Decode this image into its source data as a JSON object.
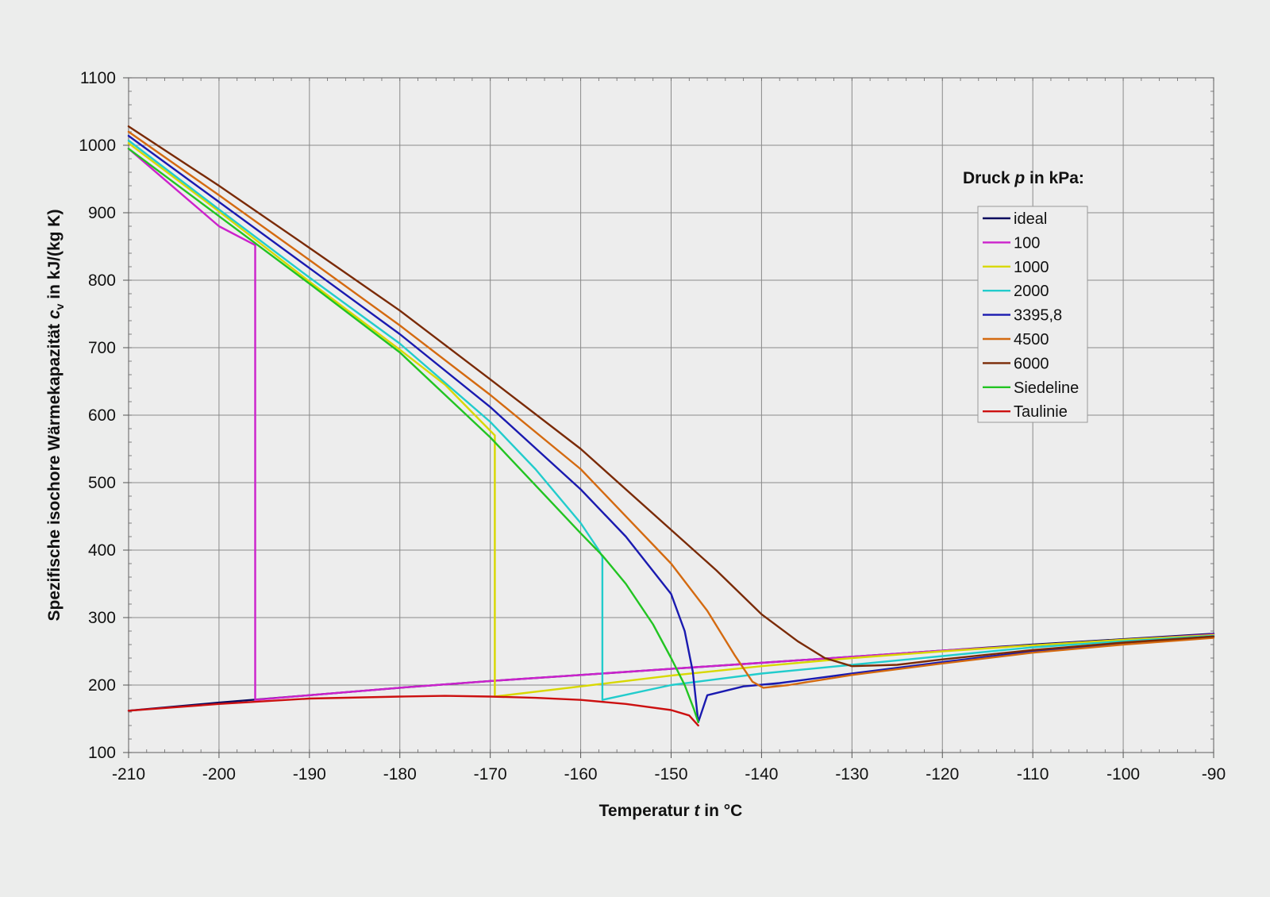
{
  "chart_data": {
    "type": "line",
    "xlabel_main": "Temperatur ",
    "xlabel_symbol": "t",
    "xlabel_unit": " in °C",
    "ylabel_main": "Spezifische isochore Wärmekapazität ",
    "ylabel_symbol": "c",
    "ylabel_sub": "v",
    "ylabel_unit": " in kJ/(kg K)",
    "xlim": [
      -210,
      -90
    ],
    "ylim": [
      100,
      1100
    ],
    "x_ticks": [
      -210,
      -200,
      -190,
      -180,
      -170,
      -160,
      -150,
      -140,
      -130,
      -120,
      -110,
      -100,
      -90
    ],
    "y_ticks": [
      100,
      200,
      300,
      400,
      500,
      600,
      700,
      800,
      900,
      1000,
      1100
    ],
    "x_minor_step": 2,
    "y_minor_step": 20,
    "grid": true,
    "legend": {
      "title_main": "Druck ",
      "title_symbol": "p",
      "title_unit": " in kPa:",
      "position": "top-right"
    },
    "series": [
      {
        "name": "ideal",
        "color": "#0a0a5e",
        "x": [
          -210,
          -200,
          -190,
          -180,
          -170,
          -160,
          -150,
          -140,
          -130,
          -120,
          -110,
          -100,
          -90
        ],
        "y": [
          162,
          174,
          185,
          196,
          206,
          215,
          224,
          233,
          242,
          251,
          260,
          268,
          276
        ]
      },
      {
        "name": "100",
        "color": "#cc22cc",
        "x": [
          -210,
          -200,
          -196,
          -196,
          -196,
          -190,
          -180,
          -170,
          -160,
          -150,
          -140,
          -130,
          -120,
          -110,
          -100,
          -90
        ],
        "y": [
          995,
          880,
          852,
          700,
          178,
          185,
          196,
          206,
          215,
          224,
          233,
          242,
          251,
          259,
          267,
          275
        ]
      },
      {
        "name": "1000",
        "color": "#d8d800",
        "x": [
          -210,
          -200,
          -190,
          -180,
          -175,
          -169.5,
          -169.5,
          -160,
          -150,
          -140,
          -130,
          -120,
          -110,
          -100,
          -90
        ],
        "y": [
          1003,
          902,
          798,
          697,
          645,
          570,
          183,
          198,
          214,
          228,
          240,
          250,
          259,
          267,
          274
        ]
      },
      {
        "name": "2000",
        "color": "#22cccc",
        "x": [
          -210,
          -200,
          -190,
          -180,
          -170,
          -165,
          -160,
          -158,
          -157.6,
          -157.6,
          -150,
          -140,
          -130,
          -120,
          -110,
          -100,
          -90
        ],
        "y": [
          1007,
          905,
          804,
          706,
          590,
          520,
          440,
          400,
          390,
          178,
          200,
          217,
          230,
          243,
          256,
          265,
          273
        ]
      },
      {
        "name": "3395,8",
        "color": "#1a1ab0",
        "x": [
          -210,
          -200,
          -190,
          -180,
          -170,
          -160,
          -155,
          -150,
          -148.5,
          -147.6,
          -147,
          -146,
          -142,
          -138,
          -130,
          -120,
          -110,
          -100,
          -90
        ],
        "y": [
          1014,
          916,
          818,
          720,
          612,
          490,
          420,
          335,
          280,
          220,
          145,
          185,
          198,
          203,
          217,
          234,
          250,
          262,
          272
        ]
      },
      {
        "name": "4500",
        "color": "#d46a10",
        "x": [
          -210,
          -200,
          -190,
          -180,
          -170,
          -160,
          -150,
          -146,
          -143,
          -141,
          -139.8,
          -137,
          -130,
          -120,
          -110,
          -100,
          -90
        ],
        "y": [
          1020,
          926,
          830,
          733,
          630,
          520,
          380,
          310,
          245,
          205,
          196,
          200,
          215,
          232,
          248,
          260,
          270
        ]
      },
      {
        "name": "6000",
        "color": "#7a2a05",
        "x": [
          -210,
          -200,
          -190,
          -180,
          -170,
          -160,
          -150,
          -145,
          -140,
          -136,
          -133,
          -130,
          -125,
          -120,
          -110,
          -100,
          -90
        ],
        "y": [
          1028,
          940,
          848,
          755,
          653,
          550,
          430,
          370,
          305,
          265,
          240,
          228,
          230,
          238,
          252,
          263,
          272
        ]
      },
      {
        "name": "Siedeline",
        "color": "#22c422",
        "x": [
          -210,
          -200,
          -190,
          -180,
          -170,
          -160,
          -157.6,
          -155,
          -152,
          -150,
          -148.5,
          -147.5,
          -147
        ],
        "y": [
          995,
          895,
          795,
          693,
          567,
          425,
          392,
          350,
          290,
          240,
          200,
          165,
          145
        ]
      },
      {
        "name": "Taulinie",
        "color": "#cc1010",
        "x": [
          -210,
          -200,
          -190,
          -180,
          -175,
          -170,
          -165,
          -160,
          -155,
          -150,
          -148,
          -147
        ],
        "y": [
          162,
          172,
          180,
          183,
          184,
          183,
          181,
          178,
          172,
          163,
          155,
          140
        ]
      }
    ]
  }
}
